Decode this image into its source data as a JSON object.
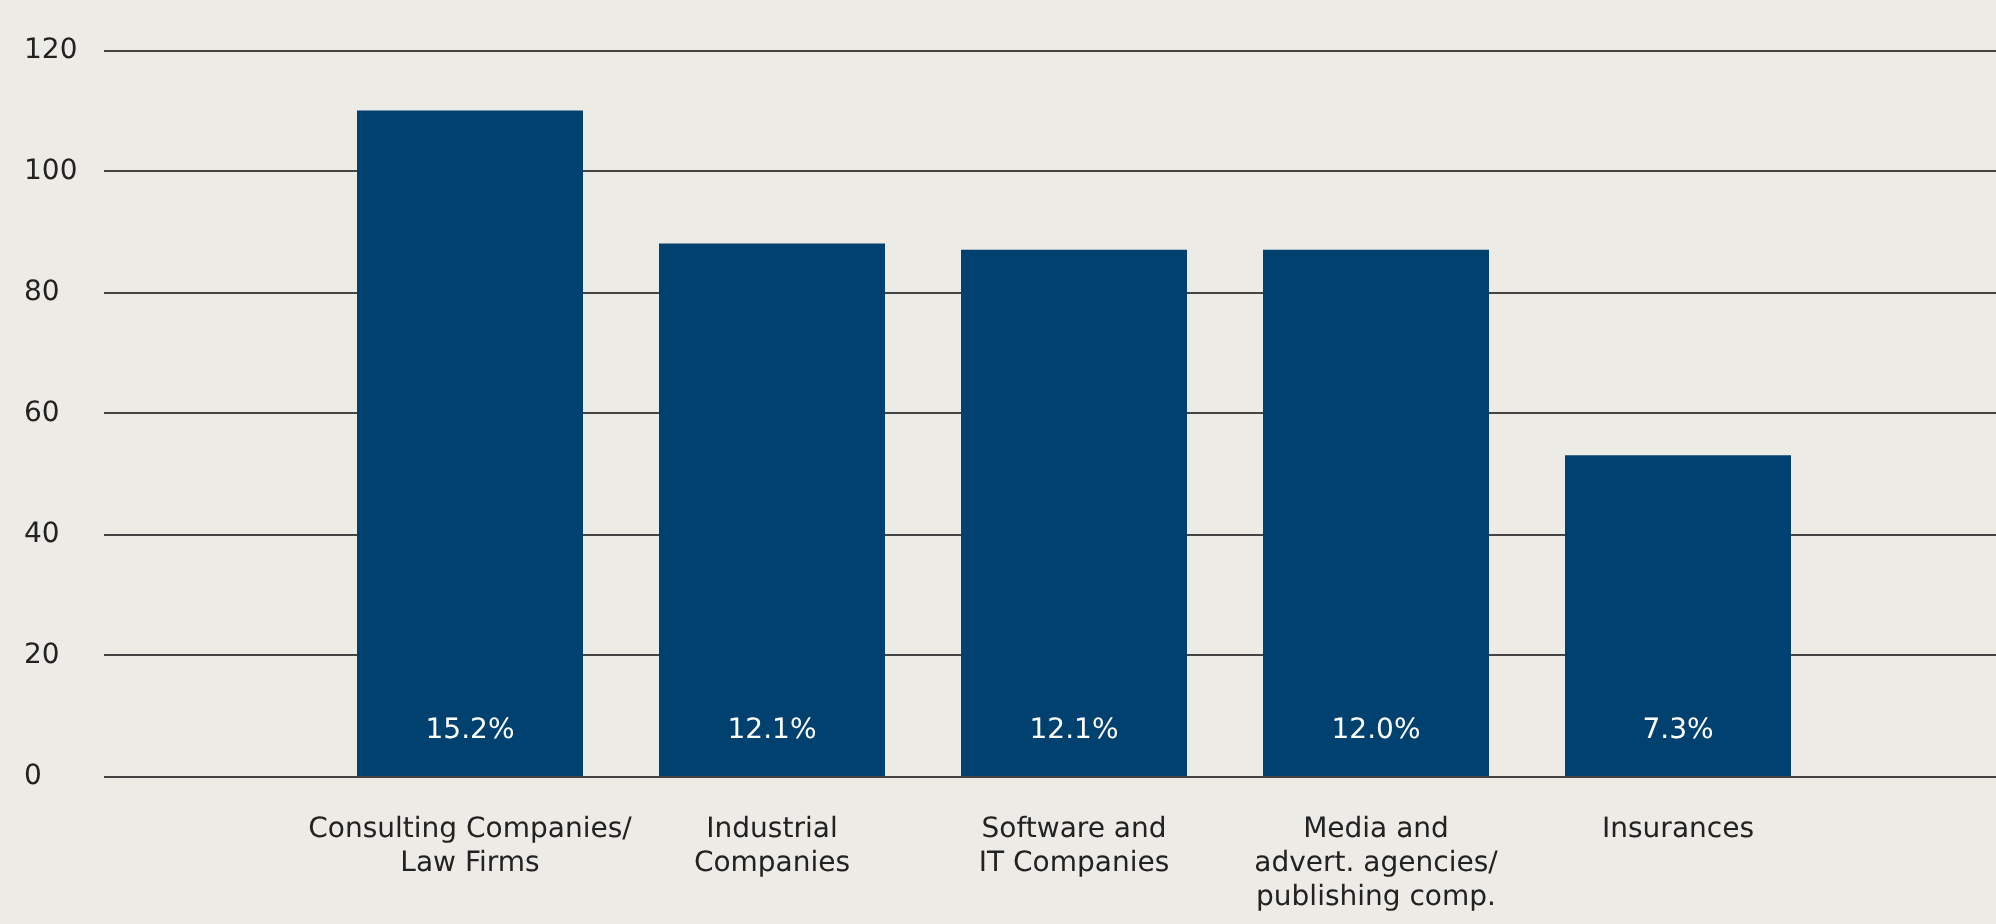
{
  "chart_data": {
    "type": "bar",
    "categories": [
      "Consulting Companies/\nLaw Firms",
      "Industrial\nCompanies",
      "Software and\nIT Companies",
      "Media and\nadvert. agencies/\npublishing comp.",
      "Insurances"
    ],
    "values": [
      110,
      88,
      87,
      87,
      53
    ],
    "annotations": [
      "15.2%",
      "12.1%",
      "12.1%",
      "12.0%",
      "7.3%"
    ],
    "color": "#004170",
    "ylim": [
      0,
      120
    ],
    "yticks": [
      0,
      20,
      40,
      60,
      80,
      100,
      120
    ],
    "grid": "y"
  }
}
